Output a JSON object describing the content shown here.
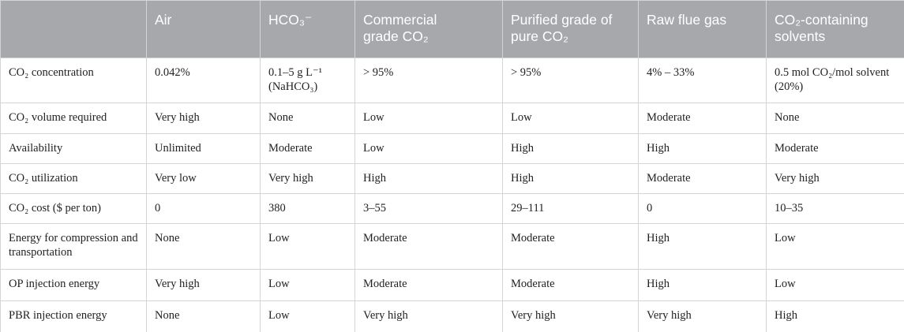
{
  "table": {
    "header": [
      "",
      "Air",
      "HCO₃⁻",
      "Commercial grade CO₂",
      "Purified grade of pure CO₂",
      "Raw flue gas",
      "CO₂-containing solvents"
    ],
    "rows": [
      [
        "CO₂ concentration",
        "0.042%",
        "0.1–5 g L⁻¹ (NaHCO₃)",
        "> 95%",
        "> 95%",
        "4% – 33%",
        "0.5 mol CO₂/mol solvent (20%)"
      ],
      [
        "CO₂ volume required",
        "Very high",
        "None",
        "Low",
        "Low",
        "Moderate",
        "None"
      ],
      [
        "Availability",
        "Unlimited",
        "Moderate",
        "Low",
        "High",
        "High",
        "Moderate"
      ],
      [
        "CO₂ utilization",
        "Very low",
        "Very high",
        "High",
        "High",
        "Moderate",
        "Very high"
      ],
      [
        "CO₂ cost ($ per ton)",
        "0",
        "380",
        "3–55",
        "29–111",
        "0",
        "10–35"
      ],
      [
        "Energy for compression and transportation",
        "None",
        "Low",
        "Moderate",
        "Moderate",
        "High",
        "Low"
      ],
      [
        "OP injection energy",
        "Very high",
        "Low",
        "Moderate",
        "Moderate",
        "High",
        "Low"
      ],
      [
        "PBR injection energy",
        "None",
        "Low",
        "Very high",
        "Very high",
        "Very high",
        "High"
      ]
    ]
  }
}
